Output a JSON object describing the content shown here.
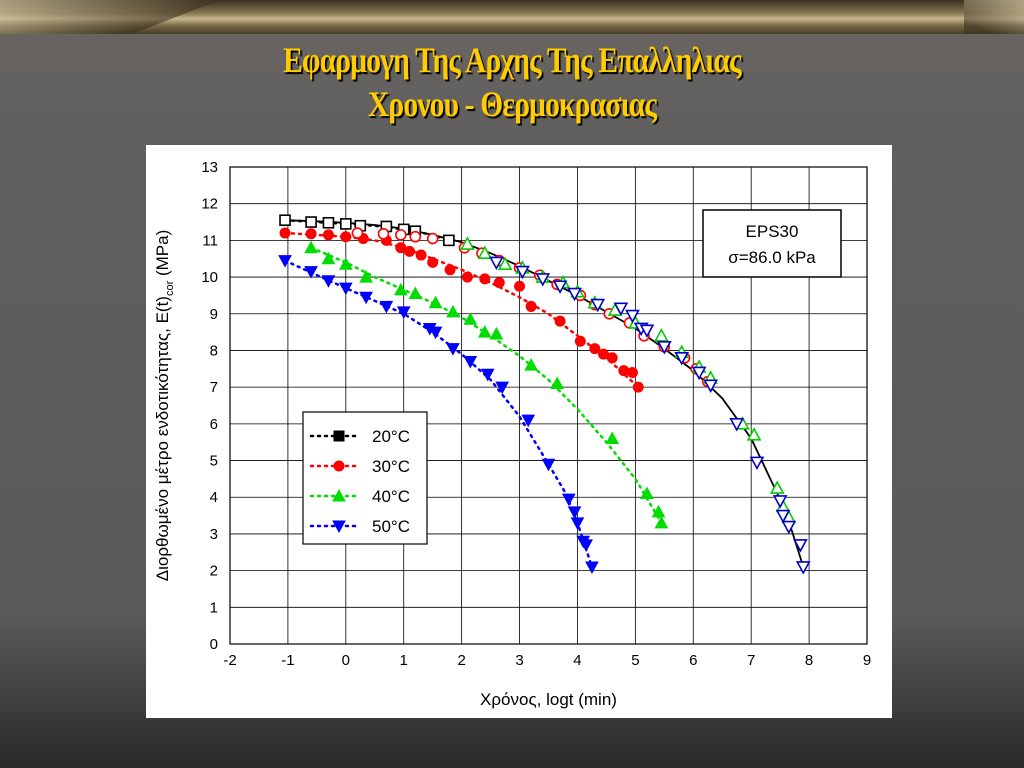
{
  "slide": {
    "title_line1": "Εφαρμογη  Της  Αρχης  Της Επαλληλιας",
    "title_line2": "Χρονου - Θερμοκρασιας"
  },
  "colors": {
    "title": "#ffcc00",
    "series_20": "#000000",
    "series_30": "#ff0000",
    "series_40": "#00dd00",
    "series_50": "#0000ff",
    "master_open_red": "#ff0000",
    "master_open_green": "#00cc00",
    "master_open_blue": "#0000cc"
  },
  "chart_data": {
    "type": "scatter",
    "xlabel": "Χρόνος, logt (min)",
    "ylabel_main": "Διορθωμένο μέτρο ενδοτικότητας, E(t)",
    "ylabel_sub": "cor",
    "ylabel_unit": " (MPa)",
    "xlim": [
      -2,
      9
    ],
    "ylim": [
      0,
      13
    ],
    "xticks": [
      -2,
      -1,
      0,
      1,
      2,
      3,
      4,
      5,
      6,
      7,
      8,
      9
    ],
    "yticks": [
      0,
      1,
      2,
      3,
      4,
      5,
      6,
      7,
      8,
      9,
      10,
      11,
      12,
      13
    ],
    "grid": true,
    "annotation": {
      "line1": "EPS30",
      "line2": "σ=86.0 kPa"
    },
    "legend": {
      "position": "lower-left",
      "entries": [
        "20°C",
        "30°C",
        "40°C",
        "50°C"
      ]
    },
    "series": [
      {
        "name": "20°C",
        "marker": "square-filled",
        "color": "#000000",
        "x": [
          -1.05,
          -0.6,
          -0.3,
          0.0,
          0.25,
          0.7,
          1.0,
          1.2,
          1.78
        ],
        "y": [
          11.55,
          11.5,
          11.48,
          11.45,
          11.4,
          11.38,
          11.3,
          11.25,
          11.0
        ]
      },
      {
        "name": "30°C",
        "marker": "circle-filled",
        "color": "#ff0000",
        "x": [
          -1.05,
          -0.6,
          -0.3,
          0.0,
          0.3,
          0.7,
          0.95,
          1.1,
          1.3,
          1.5,
          1.8,
          2.1,
          2.4,
          2.65,
          3.0,
          3.2,
          3.7,
          4.05,
          4.3,
          4.45,
          4.6,
          4.8,
          4.95,
          5.05
        ],
        "y": [
          11.2,
          11.18,
          11.15,
          11.1,
          11.05,
          11.0,
          10.8,
          10.7,
          10.6,
          10.4,
          10.2,
          10.0,
          9.95,
          9.85,
          9.75,
          9.2,
          8.8,
          8.25,
          8.05,
          7.9,
          7.8,
          7.45,
          7.4,
          7.0
        ]
      },
      {
        "name": "40°C",
        "marker": "triangle-up-filled",
        "color": "#00dd00",
        "x": [
          -0.6,
          -0.3,
          0.0,
          0.35,
          0.95,
          1.2,
          1.55,
          1.85,
          2.15,
          2.4,
          2.6,
          3.2,
          3.65,
          4.6,
          5.2,
          5.4,
          5.45
        ],
        "y": [
          10.8,
          10.5,
          10.35,
          10.0,
          9.65,
          9.55,
          9.3,
          9.05,
          8.85,
          8.5,
          8.45,
          7.6,
          7.1,
          5.6,
          4.1,
          3.6,
          3.3
        ]
      },
      {
        "name": "50°C",
        "marker": "triangle-down-filled",
        "color": "#0000ff",
        "x": [
          -1.05,
          -0.6,
          -0.3,
          0.0,
          0.35,
          0.7,
          1.0,
          1.45,
          1.55,
          1.85,
          2.15,
          2.45,
          2.7,
          3.15,
          3.5,
          3.85,
          3.95,
          4.0,
          4.1,
          4.15,
          4.25
        ],
        "y": [
          10.45,
          10.15,
          9.9,
          9.7,
          9.45,
          9.2,
          9.05,
          8.6,
          8.5,
          8.05,
          7.7,
          7.35,
          7.0,
          6.1,
          4.9,
          3.95,
          3.6,
          3.3,
          2.8,
          2.7,
          2.1
        ]
      },
      {
        "name": "",
        "marker": "square-open",
        "color": "#000000",
        "x": [
          -1.05,
          -0.6,
          -0.3,
          0.0,
          0.25,
          0.7,
          1.0,
          1.2,
          1.78
        ],
        "y": [
          11.55,
          11.5,
          11.48,
          11.45,
          11.4,
          11.38,
          11.3,
          11.25,
          11.0
        ]
      },
      {
        "name": "",
        "marker": "circle-open",
        "color": "#ff0000",
        "x": [
          0.2,
          0.65,
          0.95,
          1.2,
          1.5,
          2.05,
          2.35,
          2.65,
          3.0,
          3.35,
          3.65,
          4.05,
          4.3,
          4.55,
          4.9,
          5.15,
          5.5,
          5.85,
          6.05,
          6.25
        ],
        "y": [
          11.2,
          11.18,
          11.15,
          11.1,
          11.05,
          10.8,
          10.65,
          10.45,
          10.25,
          10.05,
          9.8,
          9.5,
          9.25,
          9.0,
          8.75,
          8.4,
          8.1,
          7.8,
          7.5,
          7.15
        ]
      },
      {
        "name": "",
        "marker": "triangle-up-open",
        "color": "#00cc00",
        "x": [
          2.1,
          2.4,
          2.75,
          3.05,
          3.4,
          3.75,
          4.0,
          4.3,
          4.65,
          5.0,
          5.45,
          5.8,
          6.1,
          6.3,
          6.85,
          7.05,
          7.45,
          7.55,
          7.65
        ],
        "y": [
          10.9,
          10.65,
          10.35,
          10.25,
          10.0,
          9.85,
          9.6,
          9.3,
          9.1,
          8.75,
          8.4,
          7.95,
          7.55,
          7.25,
          6.0,
          5.7,
          4.25,
          3.75,
          3.45
        ]
      },
      {
        "name": "",
        "marker": "triangle-down-open",
        "color": "#0000cc",
        "x": [
          2.6,
          3.05,
          3.4,
          3.7,
          3.95,
          4.35,
          4.75,
          4.95,
          5.1,
          5.2,
          5.5,
          5.8,
          6.1,
          6.3,
          6.75,
          7.1,
          7.5,
          7.55,
          7.65,
          7.85,
          7.9
        ],
        "y": [
          10.4,
          10.15,
          9.95,
          9.75,
          9.55,
          9.25,
          9.15,
          8.95,
          8.6,
          8.55,
          8.1,
          7.8,
          7.4,
          7.05,
          6.0,
          4.95,
          3.9,
          3.5,
          3.2,
          2.7,
          2.1
        ]
      }
    ],
    "fit_curves": [
      {
        "name": "",
        "style": "dotted",
        "color": "#000000",
        "x": [
          -1.05,
          -0.5,
          0.0,
          0.5,
          1.0,
          1.5,
          1.8
        ],
        "y": [
          11.55,
          11.5,
          11.45,
          11.4,
          11.3,
          11.15,
          11.0
        ]
      },
      {
        "name": "",
        "style": "dotted",
        "color": "#ff0000",
        "x": [
          -1.05,
          -0.5,
          0.0,
          0.5,
          1.0,
          1.5,
          2.0,
          2.5,
          3.0,
          3.5,
          4.0,
          4.5,
          5.05
        ],
        "y": [
          11.2,
          11.15,
          11.1,
          11.0,
          10.8,
          10.5,
          10.2,
          9.85,
          9.45,
          9.0,
          8.4,
          7.8,
          7.0
        ]
      },
      {
        "name": "",
        "style": "dotted",
        "color": "#00dd00",
        "x": [
          -0.6,
          0.0,
          0.5,
          1.0,
          1.5,
          2.0,
          2.5,
          3.0,
          3.5,
          4.0,
          4.5,
          5.0,
          5.45
        ],
        "y": [
          10.8,
          10.4,
          10.0,
          9.65,
          9.3,
          8.9,
          8.4,
          7.85,
          7.2,
          6.4,
          5.5,
          4.5,
          3.3
        ]
      },
      {
        "name": "",
        "style": "dotted",
        "color": "#0000ff",
        "x": [
          -1.05,
          -0.5,
          0.0,
          0.5,
          1.0,
          1.5,
          2.0,
          2.5,
          3.0,
          3.5,
          3.8,
          4.0,
          4.25
        ],
        "y": [
          10.45,
          10.05,
          9.7,
          9.35,
          9.0,
          8.5,
          7.9,
          7.2,
          6.2,
          4.9,
          4.1,
          3.3,
          2.1
        ]
      },
      {
        "name": "",
        "style": "solid",
        "color": "#000000",
        "x": [
          -1.05,
          -0.5,
          0.0,
          0.5,
          1.0,
          1.5,
          2.0,
          2.5,
          3.0,
          3.5,
          4.0,
          4.5,
          5.0,
          5.5,
          6.0,
          6.5,
          7.0,
          7.3,
          7.6,
          7.9
        ],
        "y": [
          11.55,
          11.52,
          11.48,
          11.42,
          11.32,
          11.15,
          10.95,
          10.65,
          10.3,
          9.9,
          9.5,
          9.05,
          8.6,
          8.05,
          7.45,
          6.7,
          5.6,
          4.6,
          3.6,
          2.1
        ]
      }
    ]
  }
}
